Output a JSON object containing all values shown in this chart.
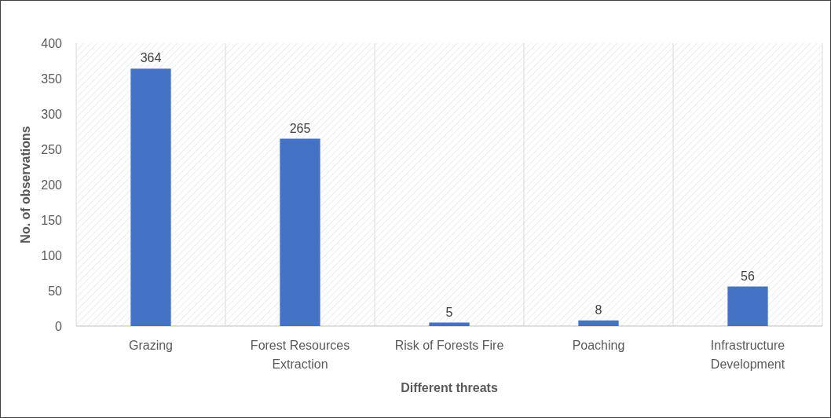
{
  "chart_data": {
    "type": "bar",
    "xlabel": "Different threats",
    "ylabel": "No. of observations",
    "categories": [
      "Grazing",
      "Forest Resources Extraction",
      "Risk of Forests Fire",
      "Poaching",
      "Infrastructure Development"
    ],
    "values": [
      364,
      265,
      5,
      8,
      56
    ],
    "color": "#4472c4",
    "ylim": [
      0,
      400
    ],
    "yticks": [
      0,
      50,
      100,
      150,
      200,
      250,
      300,
      350,
      400
    ],
    "grid": "x",
    "data_labels": true
  }
}
